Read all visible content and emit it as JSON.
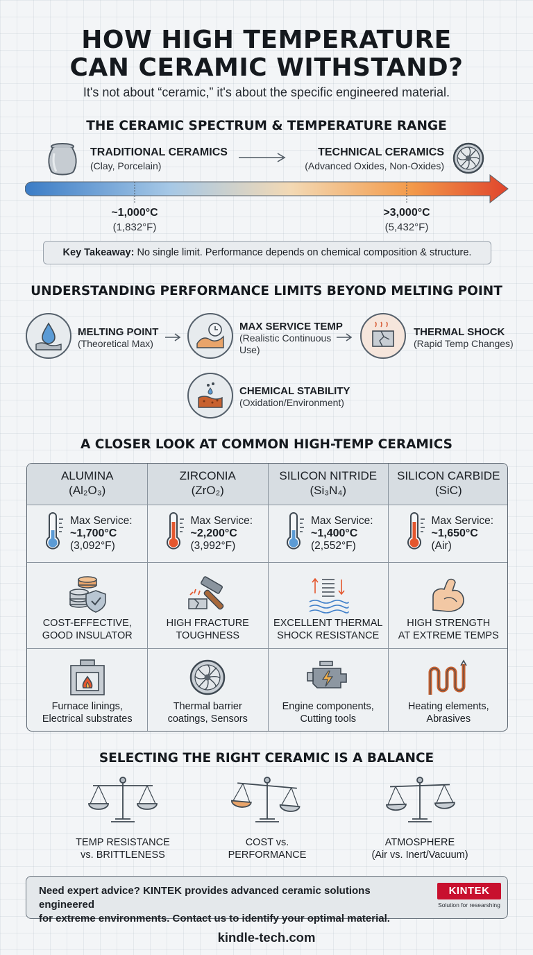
{
  "title": {
    "line1": "HOW HIGH TEMPERATURE",
    "line2": "CAN CERAMIC WITHSTAND?"
  },
  "subtitle": "It's not about “ceramic,” it's about the specific engineered material.",
  "spectrum": {
    "heading": "THE CERAMIC SPECTRUM & TEMPERATURE RANGE",
    "left": {
      "title": "TRADITIONAL CERAMICS",
      "sub": "(Clay, Porcelain)",
      "icon": "vase-icon"
    },
    "right": {
      "title": "TECHNICAL CERAMICS",
      "sub": "(Advanced Oxides, Non-Oxides)",
      "icon": "turbine-icon"
    },
    "low": {
      "c": "~1,000°C",
      "f": "(1,832°F)"
    },
    "high": {
      "c": ">3,000°C",
      "f": "(5,432°F)"
    },
    "takeaway_label": "Key Takeaway:",
    "takeaway_text": "No single limit. Performance depends on chemical composition & structure."
  },
  "limits": {
    "heading": "UNDERSTANDING PERFORMANCE LIMITS BEYOND MELTING POINT",
    "items": [
      {
        "title": "MELTING POINT",
        "sub": "(Theoretical Max)",
        "icon": "melting-drop-icon"
      },
      {
        "title": "MAX SERVICE TEMP",
        "sub1": "(Realistic Continuous",
        "sub2": "Use)",
        "icon": "clock-wave-icon"
      },
      {
        "title": "THERMAL SHOCK",
        "sub": "(Rapid Temp Changes)",
        "icon": "cracked-tile-icon"
      },
      {
        "title": "CHEMICAL STABILITY",
        "sub": "(Oxidation/Environment)",
        "icon": "corrosion-icon"
      }
    ]
  },
  "closer": {
    "heading": "A CLOSER LOOK AT COMMON HIGH-TEMP CERAMICS",
    "service_label": "Max Service:",
    "materials": [
      {
        "name": "ALUMINA",
        "formula": "(Al₂O₃)",
        "temp": "~1,700°C",
        "temp_f": "(3,092°F)",
        "therm": "blue",
        "prop1": "COST-EFFECTIVE,",
        "prop2": "GOOD INSULATOR",
        "prop_icon": "coins-shield-icon",
        "app1": "Furnace linings,",
        "app2": "Electrical substrates",
        "app_icon": "furnace-icon"
      },
      {
        "name": "ZIRCONIA",
        "formula": "(ZrO₂)",
        "temp": "~2,200°C",
        "temp_f": "(3,992°F)",
        "therm": "red",
        "prop1": "HIGH FRACTURE",
        "prop2": "TOUGHNESS",
        "prop_icon": "hammer-icon",
        "app1": "Thermal barrier",
        "app2": "coatings, Sensors",
        "app_icon": "turbine-icon"
      },
      {
        "name": "SILICON NITRIDE",
        "formula": "(Si₃N₄)",
        "temp": "~1,400°C",
        "temp_f": "(2,552°F)",
        "therm": "blue",
        "prop1": "EXCELLENT THERMAL",
        "prop2": "SHOCK RESISTANCE",
        "prop_icon": "spring-waves-icon",
        "app1": "Engine components,",
        "app2": "Cutting tools",
        "app_icon": "engine-icon"
      },
      {
        "name": "SILICON CARBIDE",
        "formula": "(SiC)",
        "temp": "~1,650°C",
        "temp_f": "(Air)",
        "therm": "red",
        "prop1": "HIGH STRENGTH",
        "prop2": "AT EXTREME TEMPS",
        "prop_icon": "flexed-arm-icon",
        "app1": "Heating elements,",
        "app2": "Abrasives",
        "app_icon": "heating-coil-icon"
      }
    ]
  },
  "balance": {
    "heading": "SELECTING THE RIGHT CERAMIC IS A BALANCE",
    "items": [
      {
        "l1": "TEMP RESISTANCE",
        "l2": "vs. BRITTLENESS",
        "icon": "scale-icon"
      },
      {
        "l1": "COST vs.",
        "l2": "PERFORMANCE",
        "icon": "scale-icon"
      },
      {
        "l1": "ATMOSPHERE",
        "l2": "(Air vs. Inert/Vacuum)",
        "icon": "scale-icon"
      }
    ]
  },
  "cta": {
    "line1": "Need expert advice? KINTEK provides advanced ceramic solutions engineered",
    "line2": "for extreme environments. Contact us to identify your optimal material.",
    "brand": "KINTEK",
    "tagline": "Solution for researshing"
  },
  "footer": "kindle-tech.com",
  "colors": {
    "cool": "#3f7fc9",
    "warm": "#e4572e",
    "accent": "#c8102e"
  }
}
